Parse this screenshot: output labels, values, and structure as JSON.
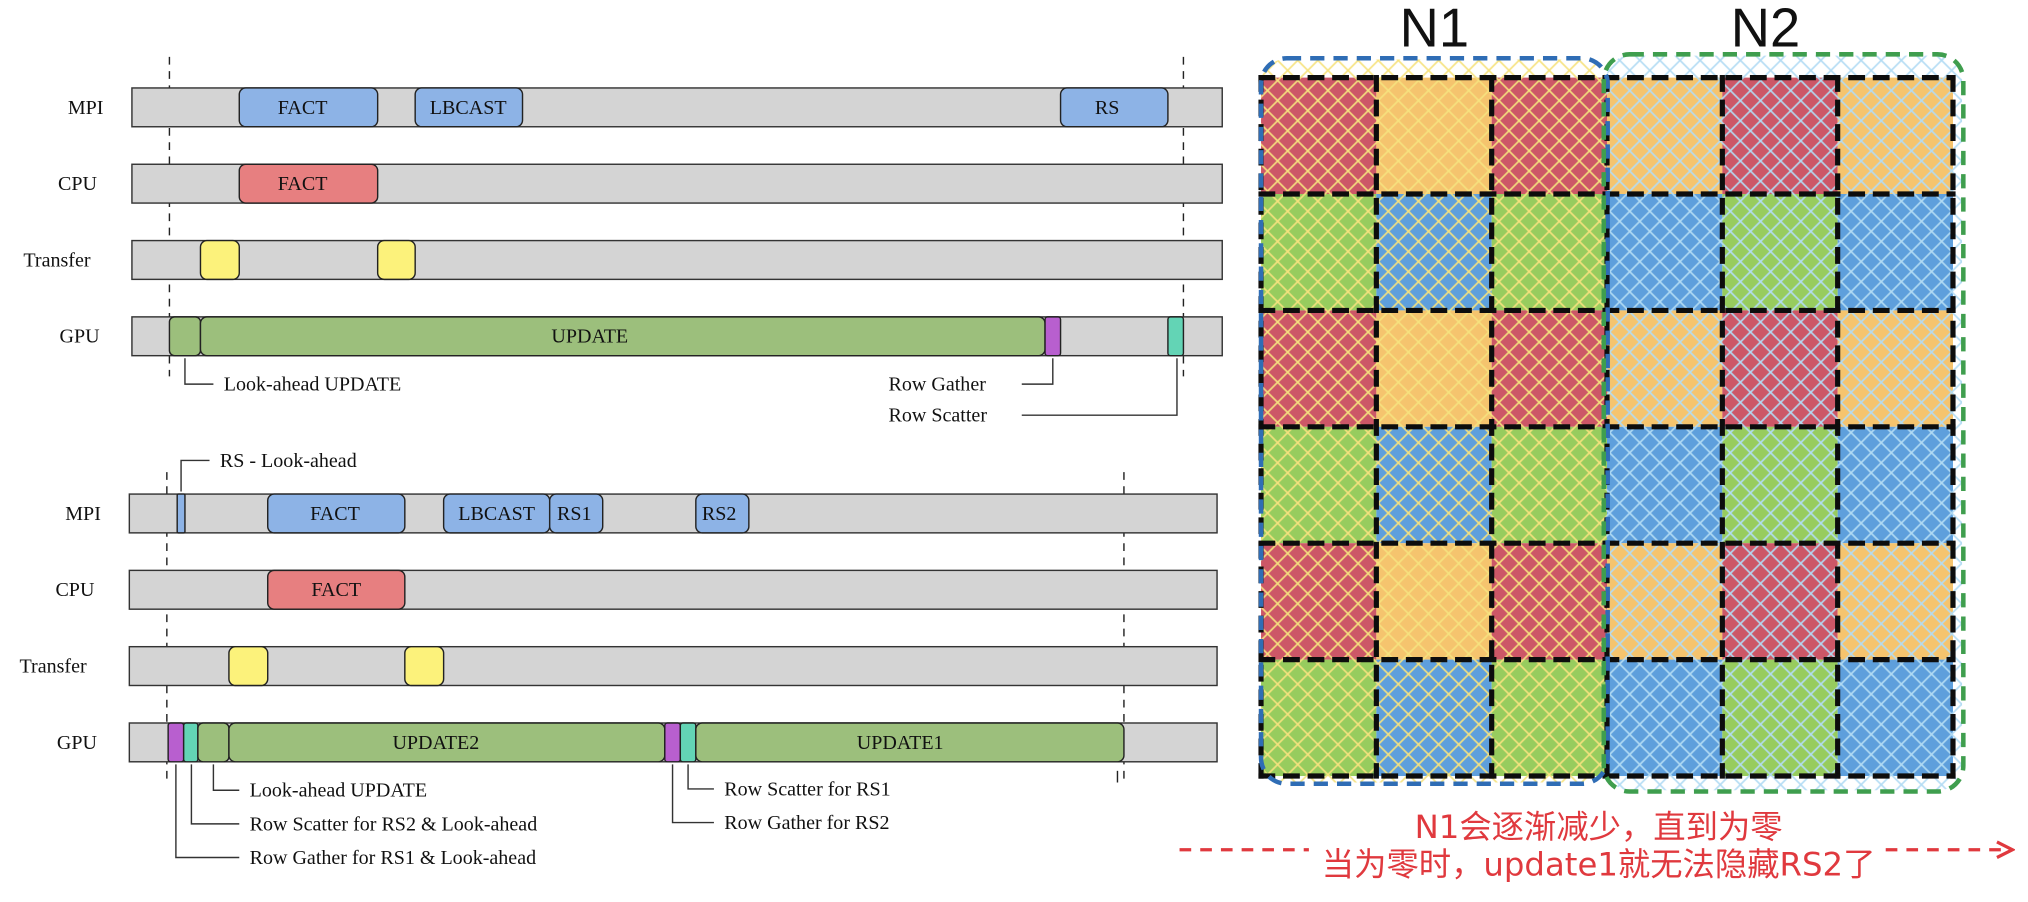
{
  "top_timeline": {
    "row_labels": {
      "mpi": "MPI",
      "cpu": "CPU",
      "transfer": "Transfer",
      "gpu": "GPU"
    },
    "mpi_tasks": {
      "fact": "FACT",
      "lbcast": "LBCAST",
      "rs": "RS"
    },
    "cpu_tasks": {
      "fact": "FACT"
    },
    "gpu_tasks": {
      "update": "UPDATE"
    },
    "annotations": {
      "lookahead_update": "Look-ahead UPDATE",
      "row_gather": "Row Gather",
      "row_scatter": "Row Scatter"
    }
  },
  "bottom_timeline": {
    "row_labels": {
      "mpi": "MPI",
      "cpu": "CPU",
      "transfer": "Transfer",
      "gpu": "GPU"
    },
    "mpi_tasks": {
      "fact": "FACT",
      "lbcast": "LBCAST",
      "rs1": "RS1",
      "rs2": "RS2"
    },
    "cpu_tasks": {
      "fact": "FACT"
    },
    "gpu_tasks": {
      "update2": "UPDATE2",
      "update1": "UPDATE1"
    },
    "annotations": {
      "rs_lookahead": "RS - Look-ahead",
      "lookahead_update": "Look-ahead UPDATE",
      "row_scatter_rs2_lookahead": "Row Scatter for RS2 & Look-ahead",
      "row_gather_rs1_lookahead": "Row Gather for RS1 & Look-ahead",
      "row_scatter_rs1": "Row Scatter for RS1",
      "row_gather_rs2": "Row Gather for RS2"
    }
  },
  "process_grid": {
    "n1_label": "N1",
    "n2_label": "N2",
    "cell_colors": [
      [
        "red",
        "orange",
        "red",
        "orange",
        "red",
        "orange"
      ],
      [
        "green",
        "blue",
        "green",
        "blue",
        "green",
        "blue"
      ],
      [
        "red",
        "orange",
        "red",
        "orange",
        "red",
        "orange"
      ],
      [
        "green",
        "blue",
        "green",
        "blue",
        "green",
        "blue"
      ],
      [
        "red",
        "orange",
        "red",
        "orange",
        "red",
        "orange"
      ],
      [
        "green",
        "blue",
        "green",
        "blue",
        "green",
        "blue"
      ]
    ]
  },
  "note": {
    "line1": "N1会逐渐减少，直到为零",
    "line2": "当为零时，update1就无法隐藏RS2了"
  },
  "colors": {
    "track_gray": "#d4d4d4",
    "task_blue": "#8db3e6",
    "task_red": "#e77f80",
    "transfer_yellow": "#fcf27b",
    "update_green": "#9cbf7c",
    "gather_purple": "#b85fcf",
    "scatter_teal": "#63d4b5",
    "cell_red": "#cc5767",
    "cell_orange": "#f5c46e",
    "cell_green": "#97cc5e",
    "cell_blue": "#5e9fdc",
    "hatch_n1": "#f6e27e",
    "hatch_n2": "#b3dcf4",
    "n1_border": "#2f6db5",
    "n2_border": "#3f9e4e",
    "note_red": "#e0393e"
  }
}
